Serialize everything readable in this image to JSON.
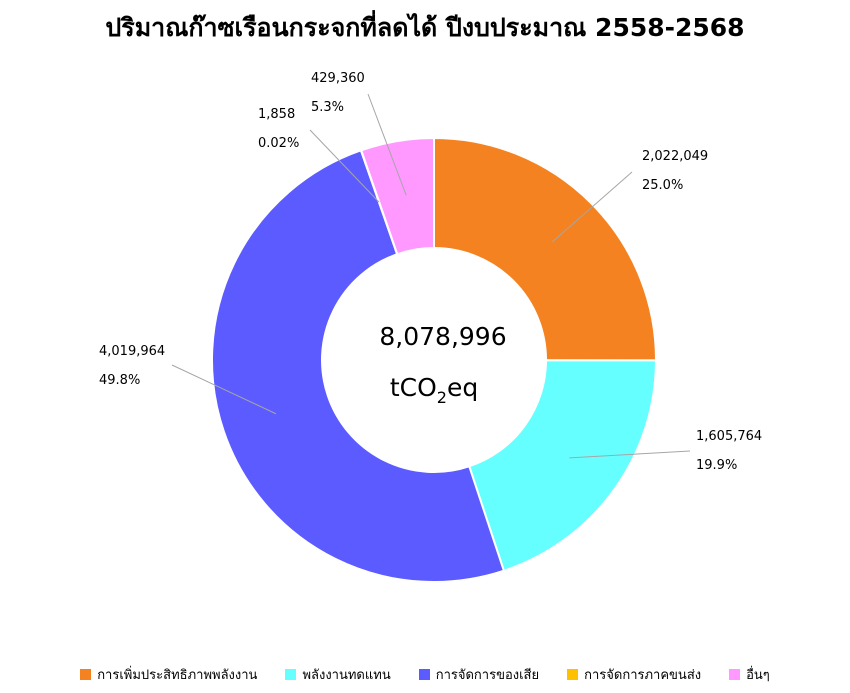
{
  "chart_data": {
    "type": "pie",
    "title": "ปริมาณก๊าซเรือนกระจกที่ลดได้ ปีงบประมาณ 2558-2568",
    "center_value": "8,078,996",
    "center_unit": {
      "prefix": "tCO",
      "sub": "2",
      "suffix": "eq"
    },
    "legend_position": "bottom",
    "series": [
      {
        "name": "การเพิ่มประสิทธิภาพพลังงาน",
        "value": 2022049,
        "value_label": "2,022,049",
        "percent_label": "25.0%",
        "color": "#F58220"
      },
      {
        "name": "พลังงานทดแทน",
        "value": 1605764,
        "value_label": "1,605,764",
        "percent_label": "19.9%",
        "color": "#66FFFF"
      },
      {
        "name": "การจัดการของเสีย",
        "value": 4019964,
        "value_label": "4,019,964",
        "percent_label": "49.8%",
        "color": "#5B5BFF"
      },
      {
        "name": "การจัดการภาคขนส่ง",
        "value": 1858,
        "value_label": "1,858",
        "percent_label": "0.02%",
        "color": "#FFC000"
      },
      {
        "name": "อื่นๆ",
        "value": 429360,
        "value_label": "429,360",
        "percent_label": "5.3%",
        "color": "#FF99FF"
      }
    ]
  }
}
